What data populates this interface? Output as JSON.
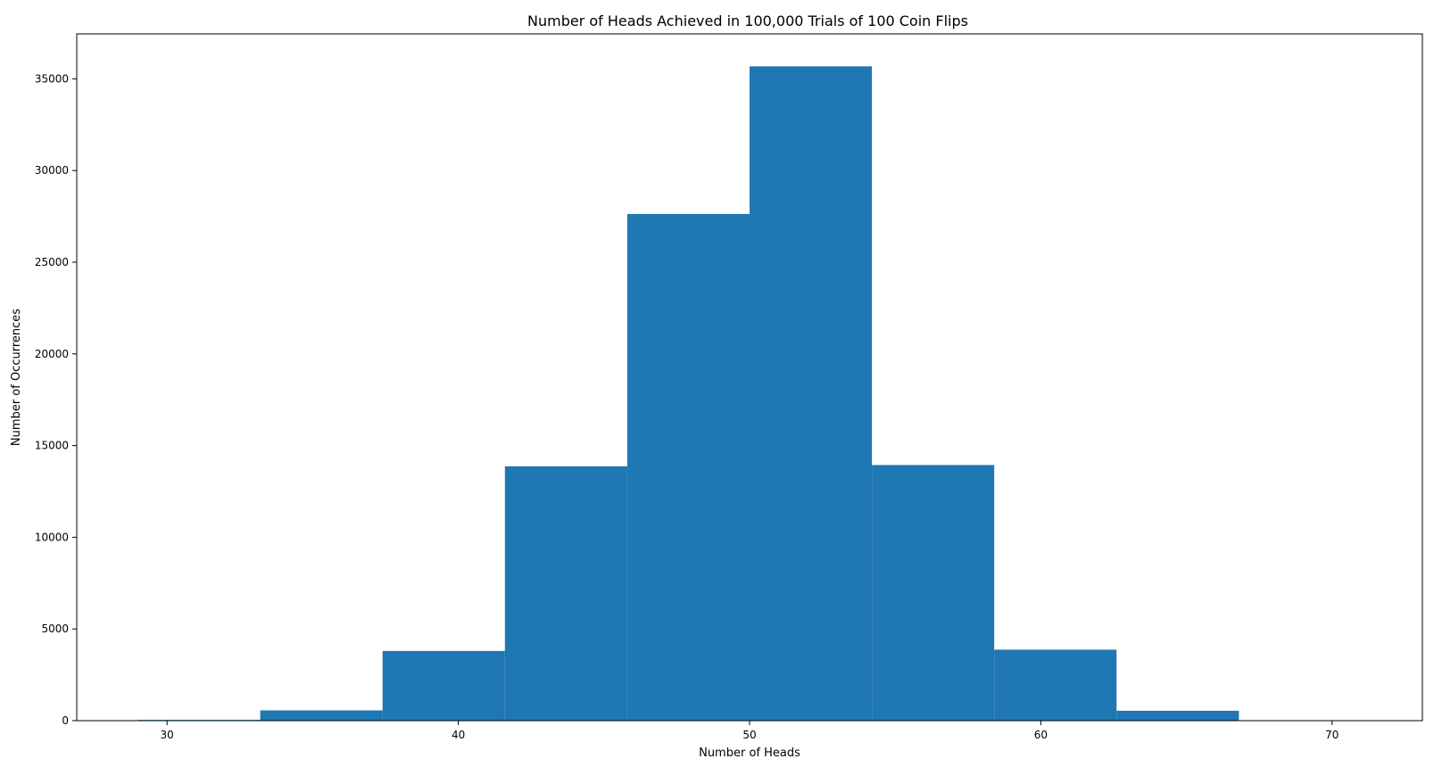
{
  "chart_data": {
    "type": "bar",
    "subtype": "histogram",
    "title": "Number of Heads Achieved in 100,000 Trials of 100 Coin Flips",
    "xlabel": "Number of Heads",
    "ylabel": "Number of Occurrences",
    "xlim": [
      26.9,
      73.1
    ],
    "ylim": [
      0,
      37450
    ],
    "xticks": [
      30,
      40,
      50,
      60,
      70
    ],
    "yticks": [
      0,
      5000,
      10000,
      15000,
      20000,
      25000,
      30000,
      35000
    ],
    "bin_edges": [
      29,
      33.2,
      37.4,
      41.6,
      45.8,
      50,
      54.2,
      58.4,
      62.6,
      66.8,
      71
    ],
    "values": [
      40,
      560,
      3800,
      13870,
      27630,
      35680,
      13940,
      3870,
      540,
      10
    ],
    "grid": false,
    "legend": "none",
    "bar_color": "#1f77b4"
  }
}
